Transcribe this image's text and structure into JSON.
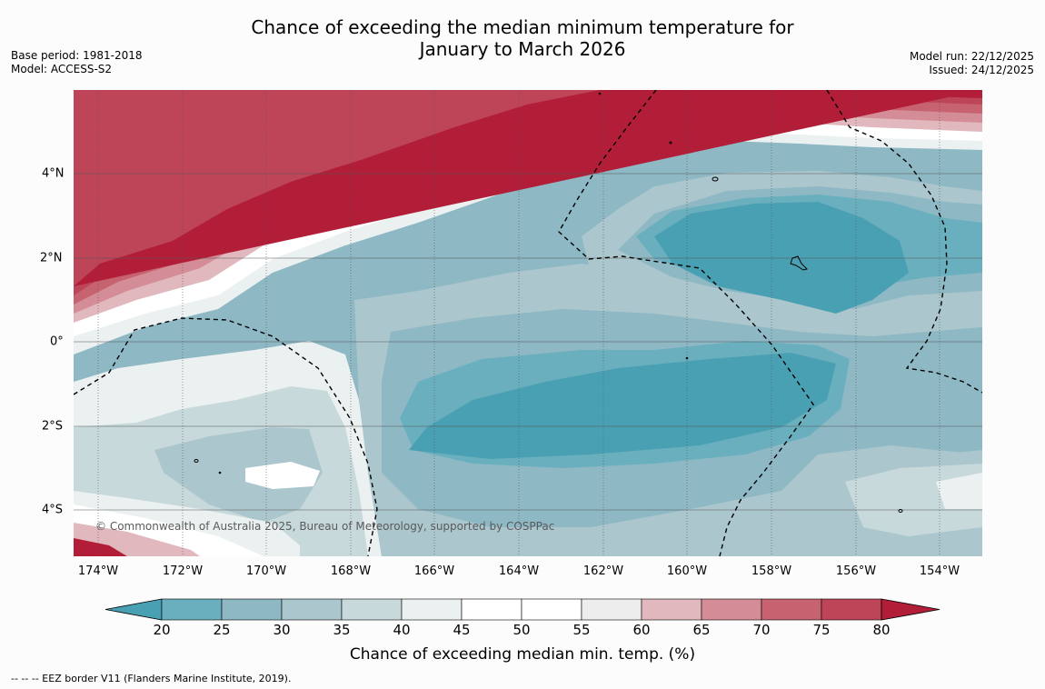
{
  "title": {
    "line1": "Chance of exceeding the median minimum temperature for",
    "line2": "January to March 2026"
  },
  "meta_left": {
    "base_period": "Base period: 1981-2018",
    "model": "Model: ACCESS-S2"
  },
  "meta_right": {
    "model_run": "Model run: 22/12/2025",
    "issued": "Issued: 24/12/2025"
  },
  "map": {
    "lon_labels": [
      "174°W",
      "172°W",
      "170°W",
      "168°W",
      "166°W",
      "164°W",
      "162°W",
      "160°W",
      "158°W",
      "156°W",
      "154°W"
    ],
    "lat_labels": [
      "4°N",
      "2°N",
      "0°",
      "2°S",
      "4°S"
    ],
    "copyright": "© Commonwealth of Australia 2025, Bureau of Meteorology, supported by COSPPac"
  },
  "colorbar": {
    "ticks": [
      "20",
      "25",
      "30",
      "35",
      "40",
      "45",
      "50",
      "55",
      "60",
      "65",
      "70",
      "75",
      "80"
    ],
    "colors": [
      "#4aa0b3",
      "#6aafbe",
      "#8db8c4",
      "#abc6cd",
      "#c8d9dc",
      "#ebf0f1",
      "#ffffff",
      "#ffffff",
      "#ededed",
      "#e0b8be",
      "#d48c96",
      "#c76370",
      "#bd4557",
      "#b21e38"
    ],
    "label": "Chance of exceeding median min. temp. (%)"
  },
  "footnote": "--  --  -- EEZ border V11 (Flanders Marine Institute, 2019)."
}
